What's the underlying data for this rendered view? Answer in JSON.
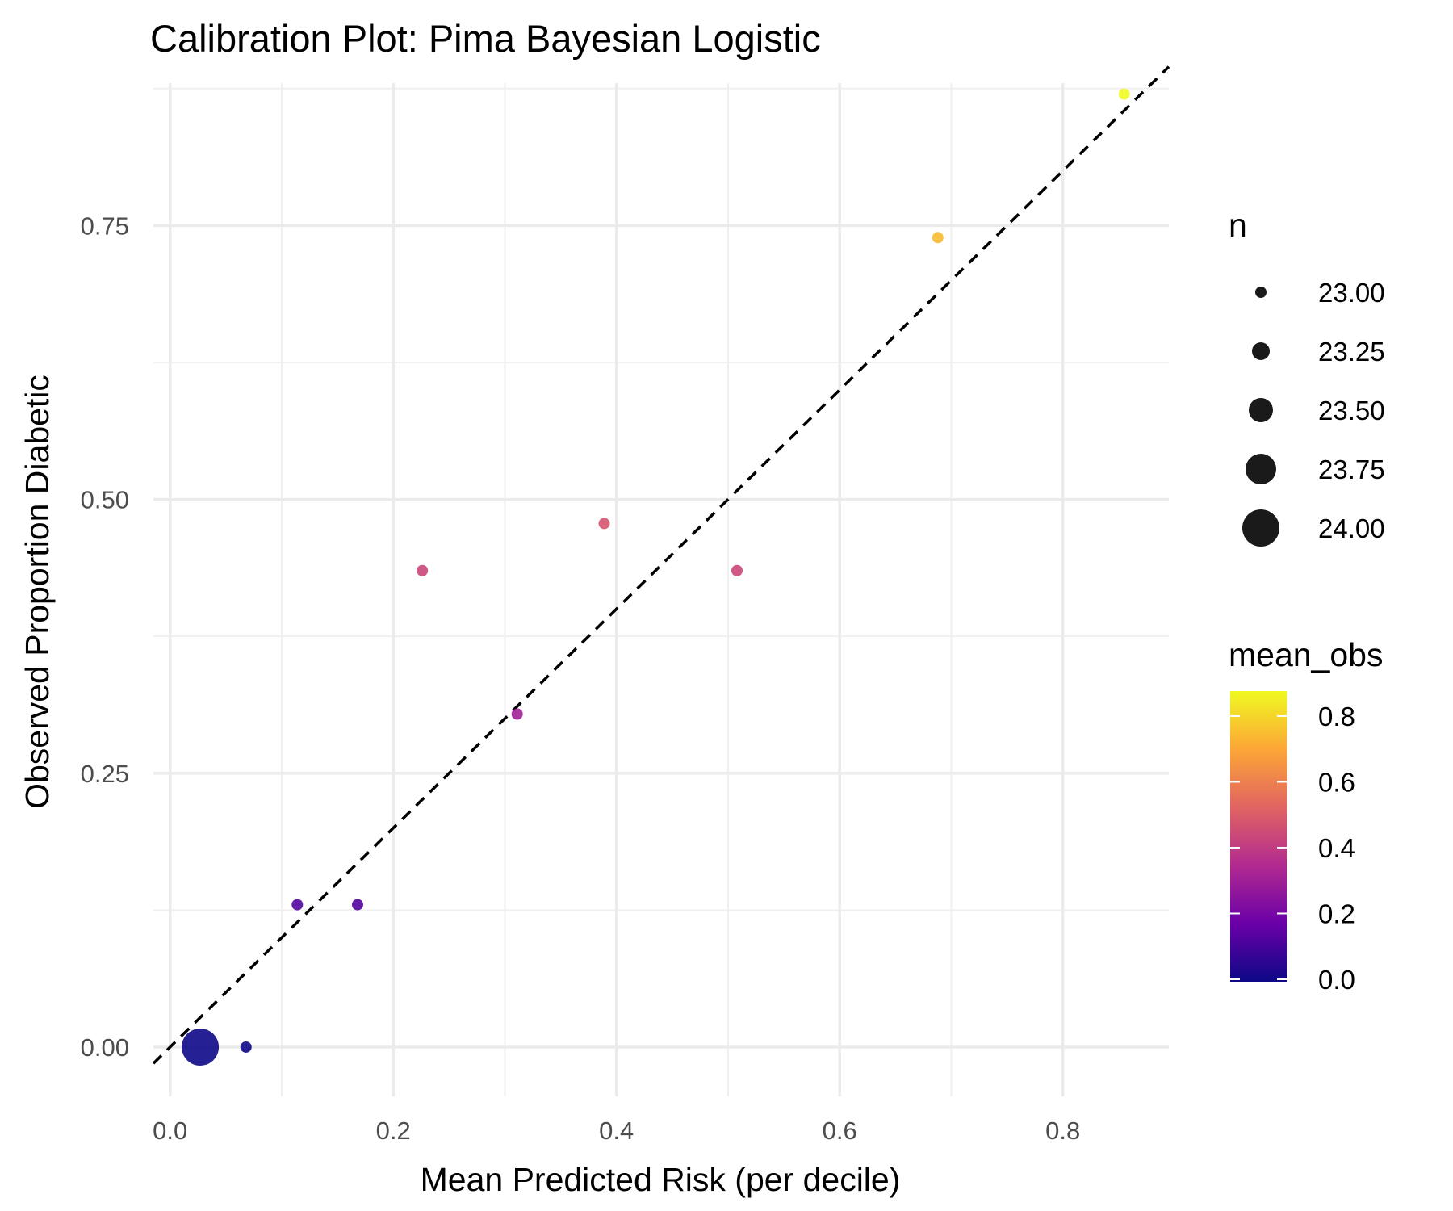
{
  "chart_data": {
    "type": "scatter",
    "title": "Calibration Plot: Pima Bayesian Logistic",
    "xlabel": "Mean Predicted Risk (per decile)",
    "ylabel": "Observed Proportion Diabetic",
    "xlim": [
      -0.015,
      0.895
    ],
    "ylim": [
      -0.045,
      0.88
    ],
    "x_ticks": [
      0.0,
      0.2,
      0.4,
      0.6,
      0.8
    ],
    "x_tick_labels": [
      "0.0",
      "0.2",
      "0.4",
      "0.6",
      "0.8"
    ],
    "y_ticks": [
      0.0,
      0.25,
      0.5,
      0.75
    ],
    "y_tick_labels": [
      "0.00",
      "0.25",
      "0.50",
      "0.75"
    ],
    "grid": true,
    "reference_line": {
      "style": "dashed",
      "slope": 1,
      "intercept": 0,
      "color": "#000000"
    },
    "points": [
      {
        "x": 0.027,
        "y": 0.0,
        "n": 24
      },
      {
        "x": 0.068,
        "y": 0.0,
        "n": 23
      },
      {
        "x": 0.114,
        "y": 0.13,
        "n": 23
      },
      {
        "x": 0.168,
        "y": 0.13,
        "n": 23
      },
      {
        "x": 0.226,
        "y": 0.435,
        "n": 23
      },
      {
        "x": 0.311,
        "y": 0.304,
        "n": 23
      },
      {
        "x": 0.389,
        "y": 0.478,
        "n": 23
      },
      {
        "x": 0.508,
        "y": 0.435,
        "n": 23
      },
      {
        "x": 0.688,
        "y": 0.739,
        "n": 23
      },
      {
        "x": 0.855,
        "y": 0.87,
        "n": 23
      }
    ],
    "legend_size": {
      "title": "n",
      "position": "right",
      "entries": [
        {
          "value": 23.0,
          "label": "23.00"
        },
        {
          "value": 23.25,
          "label": "23.25"
        },
        {
          "value": 23.5,
          "label": "23.50"
        },
        {
          "value": 23.75,
          "label": "23.75"
        },
        {
          "value": 24.0,
          "label": "24.00"
        }
      ]
    },
    "legend_color": {
      "title": "mean_obs",
      "position": "right",
      "palette": "plasma",
      "range": [
        0.0,
        0.87
      ],
      "ticks": [
        0.0,
        0.2,
        0.4,
        0.6,
        0.8
      ],
      "tick_labels": [
        "0.0",
        "0.2",
        "0.4",
        "0.6",
        "0.8"
      ],
      "colors": [
        "#0d0887",
        "#6a00a8",
        "#b12a90",
        "#e16462",
        "#fca636",
        "#f0f921"
      ]
    }
  }
}
